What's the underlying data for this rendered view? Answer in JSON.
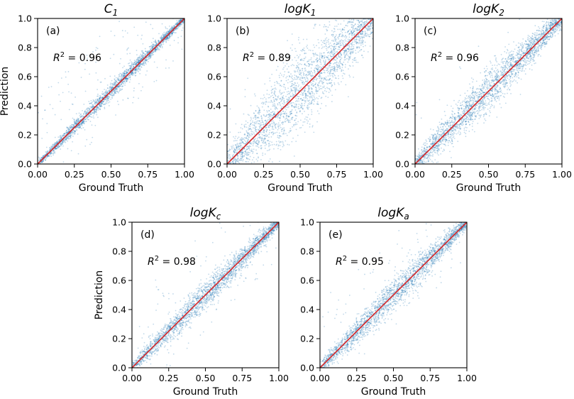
{
  "chart_data": [
    {
      "type": "scatter",
      "panel_label": "(a)",
      "title_base": "C",
      "title_sub": "1",
      "annotation": {
        "symbol": "R",
        "superscript": "2",
        "text": " = 0.96",
        "r2": 0.96
      },
      "xlabel": "Ground Truth",
      "ylabel": "Prediction",
      "xlim": [
        0,
        1
      ],
      "ylim": [
        0,
        1
      ],
      "xticks": [
        "0.00",
        "0.25",
        "0.50",
        "0.75",
        "1.00"
      ],
      "yticks": [
        "0.0",
        "0.2",
        "0.4",
        "0.6",
        "0.8",
        "1.0"
      ],
      "reference_line": "y = x",
      "spread": 0.018,
      "outlier_fraction": 0.07,
      "point_count": 2600,
      "seed": 11
    },
    {
      "type": "scatter",
      "panel_label": "(b)",
      "title_base": "logK",
      "title_sub": "1",
      "annotation": {
        "symbol": "R",
        "superscript": "2",
        "text": " = 0.89",
        "r2": 0.89
      },
      "xlabel": "Ground Truth",
      "ylabel": "",
      "xlim": [
        0,
        1
      ],
      "ylim": [
        0,
        1
      ],
      "xticks": [
        "0.00",
        "0.25",
        "0.50",
        "0.75",
        "1.00"
      ],
      "yticks": [
        "0.0",
        "0.2",
        "0.4",
        "0.6",
        "0.8",
        "1.0"
      ],
      "reference_line": "y = x",
      "spread": 0.085,
      "outlier_fraction": 0.02,
      "point_count": 2600,
      "seed": 23
    },
    {
      "type": "scatter",
      "panel_label": "(c)",
      "title_base": "logK",
      "title_sub": "2",
      "annotation": {
        "symbol": "R",
        "superscript": "2",
        "text": " = 0.96",
        "r2": 0.96
      },
      "xlabel": "Ground Truth",
      "ylabel": "",
      "xlim": [
        0,
        1
      ],
      "ylim": [
        0,
        1
      ],
      "xticks": [
        "0.00",
        "0.25",
        "0.50",
        "0.75",
        "1.00"
      ],
      "yticks": [
        "0.0",
        "0.2",
        "0.4",
        "0.6",
        "0.8",
        "1.0"
      ],
      "reference_line": "y = x",
      "spread": 0.045,
      "outlier_fraction": 0.02,
      "point_count": 2600,
      "seed": 37
    },
    {
      "type": "scatter",
      "panel_label": "(d)",
      "title_base": "logK",
      "title_sub": "c",
      "annotation": {
        "symbol": "R",
        "superscript": "2",
        "text": " = 0.98",
        "r2": 0.98
      },
      "xlabel": "Ground Truth",
      "ylabel": "Prediction",
      "xlim": [
        0,
        1
      ],
      "ylim": [
        0,
        1
      ],
      "xticks": [
        "0.00",
        "0.25",
        "0.50",
        "0.75",
        "1.00"
      ],
      "yticks": [
        "0.0",
        "0.2",
        "0.4",
        "0.6",
        "0.8",
        "1.0"
      ],
      "reference_line": "y = x",
      "spread": 0.03,
      "outlier_fraction": 0.06,
      "point_count": 2600,
      "seed": 41
    },
    {
      "type": "scatter",
      "panel_label": "(e)",
      "title_base": "logK",
      "title_sub": "a",
      "annotation": {
        "symbol": "R",
        "superscript": "2",
        "text": " = 0.95",
        "r2": 0.95
      },
      "xlabel": "Ground Truth",
      "ylabel": "",
      "xlim": [
        0,
        1
      ],
      "ylim": [
        0,
        1
      ],
      "xticks": [
        "0.00",
        "0.25",
        "0.50",
        "0.75",
        "1.00"
      ],
      "yticks": [
        "0.0",
        "0.2",
        "0.4",
        "0.6",
        "0.8",
        "1.0"
      ],
      "reference_line": "y = x",
      "spread": 0.035,
      "outlier_fraction": 0.04,
      "point_count": 2600,
      "seed": 53
    }
  ],
  "colors": {
    "points": "#1f77b4",
    "reference_line": "#d62728",
    "axes": "#000000"
  }
}
